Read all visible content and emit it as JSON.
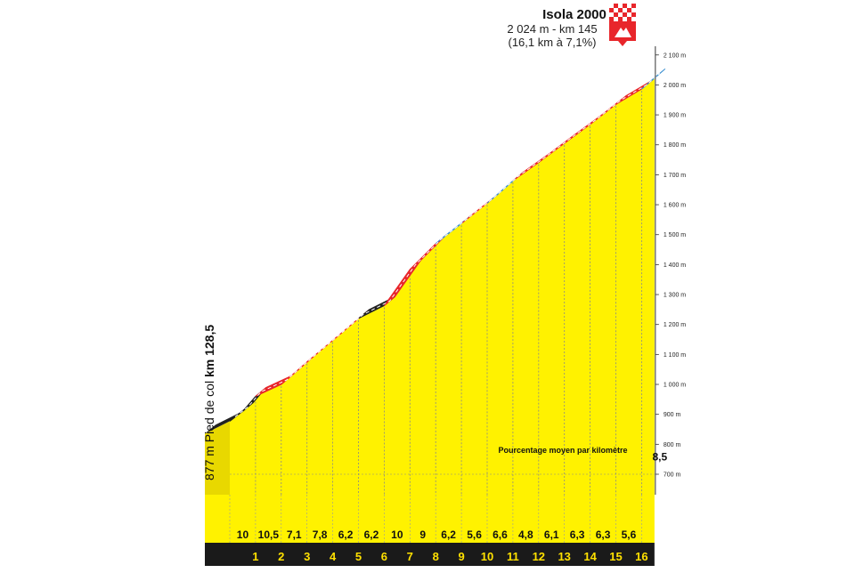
{
  "chart_data": {
    "type": "area",
    "summit": {
      "name": "Isola 2000",
      "line1": "2 024 m - km 145",
      "line2": "(16,1 km à 7,1%)"
    },
    "start_label": {
      "prefix": "877 m Pied de col ",
      "bold": "km 128,5"
    },
    "legend": "Pourcentage moyen par kilomètre",
    "yticks": [
      {
        "value": 700,
        "label": "700 m"
      },
      {
        "value": 800,
        "label": "800 m"
      },
      {
        "value": 900,
        "label": "900 m"
      },
      {
        "value": 1000,
        "label": "1 000 m"
      },
      {
        "value": 1100,
        "label": "1 100 m"
      },
      {
        "value": 1200,
        "label": "1 200 m"
      },
      {
        "value": 1300,
        "label": "1 300 m"
      },
      {
        "value": 1400,
        "label": "1 400 m"
      },
      {
        "value": 1500,
        "label": "1 500 m"
      },
      {
        "value": 1600,
        "label": "1 600 m"
      },
      {
        "value": 1700,
        "label": "1 700 m"
      },
      {
        "value": 1800,
        "label": "1 800 m"
      },
      {
        "value": 1900,
        "label": "1 900 m"
      },
      {
        "value": 2000,
        "label": "2 000 m"
      },
      {
        "value": 2100,
        "label": "2 100 m"
      }
    ],
    "ylim": [
      700,
      2100
    ],
    "xlim": [
      0,
      16.5
    ],
    "km_labels": [
      "1",
      "2",
      "3",
      "4",
      "5",
      "6",
      "7",
      "8",
      "9",
      "10",
      "11",
      "12",
      "13",
      "14",
      "15",
      "16"
    ],
    "km_label_positions": [
      1,
      2,
      3,
      4,
      5,
      6,
      7,
      8,
      9,
      10,
      11,
      12,
      13,
      14,
      15,
      16
    ],
    "gradients": [
      "10",
      "10,5",
      "7,1",
      "7,8",
      "6,2",
      "6,2",
      "10",
      "9",
      "6,2",
      "5,6",
      "6,6",
      "4,8",
      "6,1",
      "6,3",
      "6,3",
      "5,6",
      "8,5"
    ],
    "gradient_positions": [
      0.5,
      1.5,
      2.5,
      3.5,
      4.5,
      5.5,
      6.5,
      7.5,
      8.5,
      9.5,
      10.5,
      11.5,
      12.5,
      13.5,
      14.5,
      15.5,
      16.3
    ],
    "profile": [
      {
        "km": 0,
        "alt": 877
      },
      {
        "km": 0.5,
        "alt": 910
      },
      {
        "km": 1,
        "alt": 960
      },
      {
        "km": 2,
        "alt": 1000
      },
      {
        "km": 3,
        "alt": 1075
      },
      {
        "km": 4,
        "alt": 1147
      },
      {
        "km": 5,
        "alt": 1220
      },
      {
        "km": 6,
        "alt": 1263
      },
      {
        "km": 7,
        "alt": 1384
      },
      {
        "km": 8,
        "alt": 1470
      },
      {
        "km": 9,
        "alt": 1537
      },
      {
        "km": 10,
        "alt": 1605
      },
      {
        "km": 11,
        "alt": 1680
      },
      {
        "km": 12,
        "alt": 1741
      },
      {
        "km": 13,
        "alt": 1805
      },
      {
        "km": 14,
        "alt": 1868
      },
      {
        "km": 15,
        "alt": 1935
      },
      {
        "km": 16,
        "alt": 1986
      },
      {
        "km": 16.5,
        "alt": 2024
      }
    ],
    "segment_colors": [
      "#222222",
      "#222222",
      "#e8262b",
      "#e8262b",
      "#e8262b",
      "#e8262b",
      "#222222",
      "#e8262b",
      "#e8262b",
      "#3b8fd0",
      "#e8262b",
      "#3b8fd0",
      "#e8262b",
      "#e8262b",
      "#e8262b",
      "#e8262b",
      "#e8262b",
      "#3b8fd0"
    ],
    "colors": {
      "fill": "#fff200",
      "side": "#e8d800",
      "base": "#1a1a1a",
      "grid": "#888888",
      "flag": "#e8262b"
    }
  }
}
